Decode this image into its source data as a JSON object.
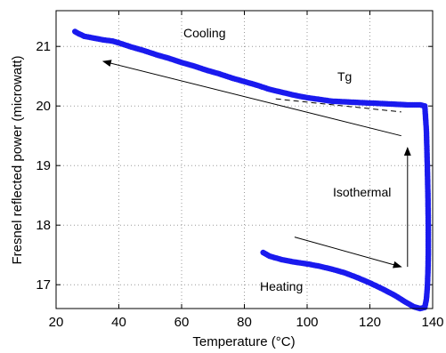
{
  "chart_data": {
    "type": "scatter",
    "title": "",
    "xlabel": "Temperature (°C)",
    "ylabel": "Fresnel reflected power (microwatt)",
    "xlim": [
      20,
      140
    ],
    "ylim": [
      16.6,
      21.6
    ],
    "xticks": [
      20,
      40,
      60,
      80,
      100,
      120,
      140
    ],
    "yticks": [
      17,
      18,
      19,
      20,
      21
    ],
    "grid": true,
    "series": [
      {
        "color": "#1a1aee",
        "points": [
          [
            26,
            21.25
          ],
          [
            27,
            21.22
          ],
          [
            29,
            21.17
          ],
          [
            32,
            21.14
          ],
          [
            35,
            21.11
          ],
          [
            38,
            21.09
          ],
          [
            40,
            21.06
          ],
          [
            44,
            20.99
          ],
          [
            48,
            20.93
          ],
          [
            52,
            20.86
          ],
          [
            56,
            20.8
          ],
          [
            60,
            20.73
          ],
          [
            64,
            20.67
          ],
          [
            68,
            20.6
          ],
          [
            72,
            20.54
          ],
          [
            76,
            20.47
          ],
          [
            80,
            20.41
          ],
          [
            84,
            20.35
          ],
          [
            88,
            20.28
          ],
          [
            92,
            20.23
          ],
          [
            96,
            20.18
          ],
          [
            100,
            20.14
          ],
          [
            104,
            20.11
          ],
          [
            108,
            20.08
          ],
          [
            112,
            20.07
          ],
          [
            116,
            20.06
          ],
          [
            120,
            20.05
          ],
          [
            124,
            20.04
          ],
          [
            128,
            20.03
          ],
          [
            132,
            20.02
          ],
          [
            136,
            20.02
          ],
          [
            137.5,
            20.0
          ],
          [
            138.0,
            19.6
          ],
          [
            138.3,
            19.0
          ],
          [
            138.5,
            18.5
          ],
          [
            138.6,
            18.0
          ],
          [
            138.6,
            17.5
          ],
          [
            138.5,
            17.2
          ],
          [
            138.3,
            16.95
          ],
          [
            138.0,
            16.75
          ],
          [
            137.5,
            16.62
          ],
          [
            136.0,
            16.6
          ],
          [
            134,
            16.63
          ],
          [
            131,
            16.72
          ],
          [
            128,
            16.82
          ],
          [
            124,
            16.93
          ],
          [
            120,
            17.03
          ],
          [
            116,
            17.12
          ],
          [
            112,
            17.2
          ],
          [
            108,
            17.26
          ],
          [
            104,
            17.31
          ],
          [
            100,
            17.35
          ],
          [
            96,
            17.38
          ],
          [
            92,
            17.42
          ],
          [
            88,
            17.48
          ],
          [
            86,
            17.54
          ]
        ]
      }
    ],
    "annotations": {
      "cooling": "Cooling",
      "tg": "Tg",
      "isothermal": "Isothermal",
      "heating": "Heating"
    }
  }
}
